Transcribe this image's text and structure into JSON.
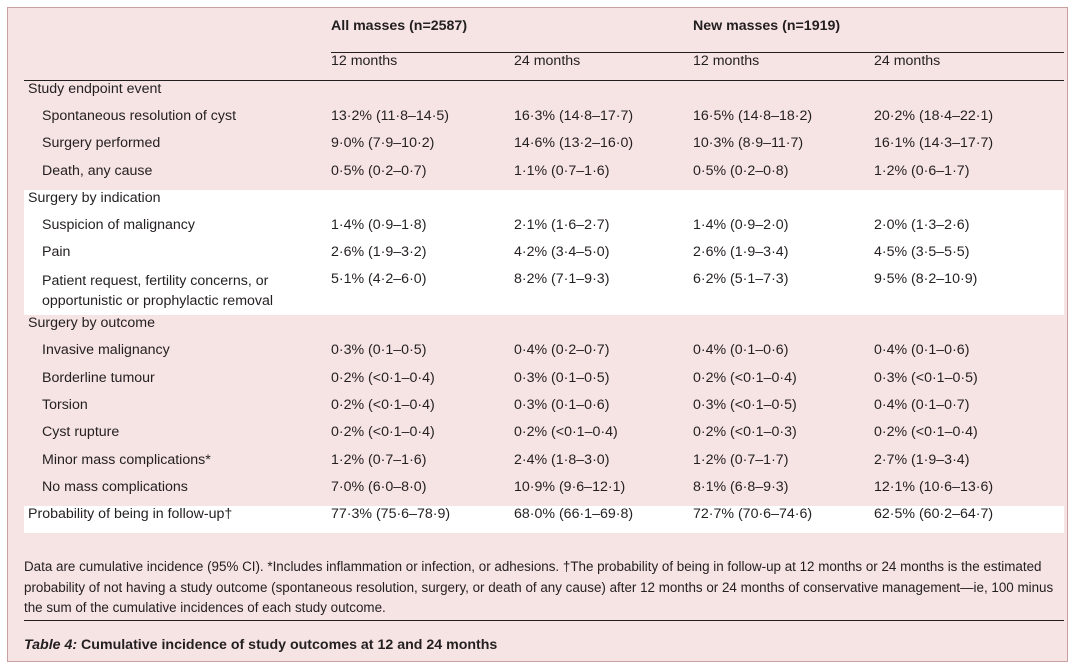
{
  "groups": [
    "All masses (n=2587)",
    "New masses (n=1919)"
  ],
  "columns": [
    "12 months",
    "24 months",
    "12 months",
    "24 months"
  ],
  "sections": [
    {
      "title": "Study endpoint event",
      "white": false,
      "rows": [
        {
          "label": "Spontaneous resolution of cyst",
          "values": [
            "13·2% (11·8–14·5)",
            "16·3% (14·8–17·7)",
            "16·5% (14·8–18·2)",
            "20·2% (18·4–22·1)"
          ]
        },
        {
          "label": "Surgery performed",
          "values": [
            "9·0% (7·9–10·2)",
            "14·6% (13·2–16·0)",
            "10·3% (8·9–11·7)",
            "16·1% (14·3–17·7)"
          ]
        },
        {
          "label": "Death, any cause",
          "values": [
            "0·5% (0·2–0·7)",
            "1·1% (0·7–1·6)",
            "0·5% (0·2–0·8)",
            "1·2% (0·6–1·7)"
          ]
        }
      ]
    },
    {
      "title": "Surgery by indication",
      "white": true,
      "rows": [
        {
          "label": "Suspicion of malignancy",
          "values": [
            "1·4% (0·9–1·8)",
            "2·1% (1·6–2·7)",
            "1·4% (0·9–2·0)",
            "2·0% (1·3–2·6)"
          ]
        },
        {
          "label": "Pain",
          "values": [
            "2·6% (1·9–3·2)",
            "4·2% (3·4–5·0)",
            "2·6% (1·9–3·4)",
            "4·5% (3·5–5·5)"
          ]
        },
        {
          "label": "Patient request, fertility concerns, or opportunistic or prophylactic removal",
          "values": [
            "5·1% (4·2–6·0)",
            "8·2% (7·1–9·3)",
            "6·2% (5·1–7·3)",
            "9·5% (8·2–10·9)"
          ]
        }
      ]
    },
    {
      "title": "Surgery by outcome",
      "white": false,
      "rows": [
        {
          "label": "Invasive malignancy",
          "values": [
            "0·3% (0·1–0·5)",
            "0·4% (0·2–0·7)",
            "0·4% (0·1–0·6)",
            "0·4% (0·1–0·6)"
          ]
        },
        {
          "label": "Borderline tumour",
          "values": [
            "0·2% (<0·1–0·4)",
            "0·3% (0·1–0·5)",
            "0·2% (<0·1–0·4)",
            "0·3% (<0·1–0·5)"
          ]
        },
        {
          "label": "Torsion",
          "values": [
            "0·2% (<0·1–0·4)",
            "0·3% (0·1–0·6)",
            "0·3% (<0·1–0·5)",
            "0·4% (0·1–0·7)"
          ]
        },
        {
          "label": "Cyst rupture",
          "values": [
            "0·2% (<0·1–0·4)",
            "0·2% (<0·1–0·4)",
            "0·2% (<0·1–0·3)",
            "0·2% (<0·1–0·4)"
          ]
        },
        {
          "label": "Minor mass complications*",
          "values": [
            "1·2% (0·7–1·6)",
            "2·4% (1·8–3·0)",
            "1·2% (0·7–1·7)",
            "2·7% (1·9–3·4)"
          ]
        },
        {
          "label": "No mass complications",
          "values": [
            "7·0% (6·0–8·0)",
            "10·9% (9·6–12·1)",
            "8·1% (6·8–9·3)",
            "12·1% (10·6–13·6)"
          ]
        }
      ]
    }
  ],
  "probability_row": {
    "label": "Probability of being in follow-up†",
    "values": [
      "77·3% (75·6–78·9)",
      "68·0% (66·1–69·8)",
      "72·7% (70·6–74·6)",
      "62·5% (60·2–64·7)"
    ]
  },
  "footnote": "Data are cumulative incidence (95% CI). *Includes inflammation or infection, or adhesions. †The probability of being in follow-up at 12 months or 24 months is the estimated probability of not having a study outcome (spontaneous resolution, surgery, or death of any cause) after 12 months or 24 months of conservative management—ie, 100 minus the sum of the cumulative incidences of each study outcome.",
  "caption": {
    "label": "Table 4:",
    "text": "Cumulative incidence of study outcomes at 12 and 24 months"
  }
}
